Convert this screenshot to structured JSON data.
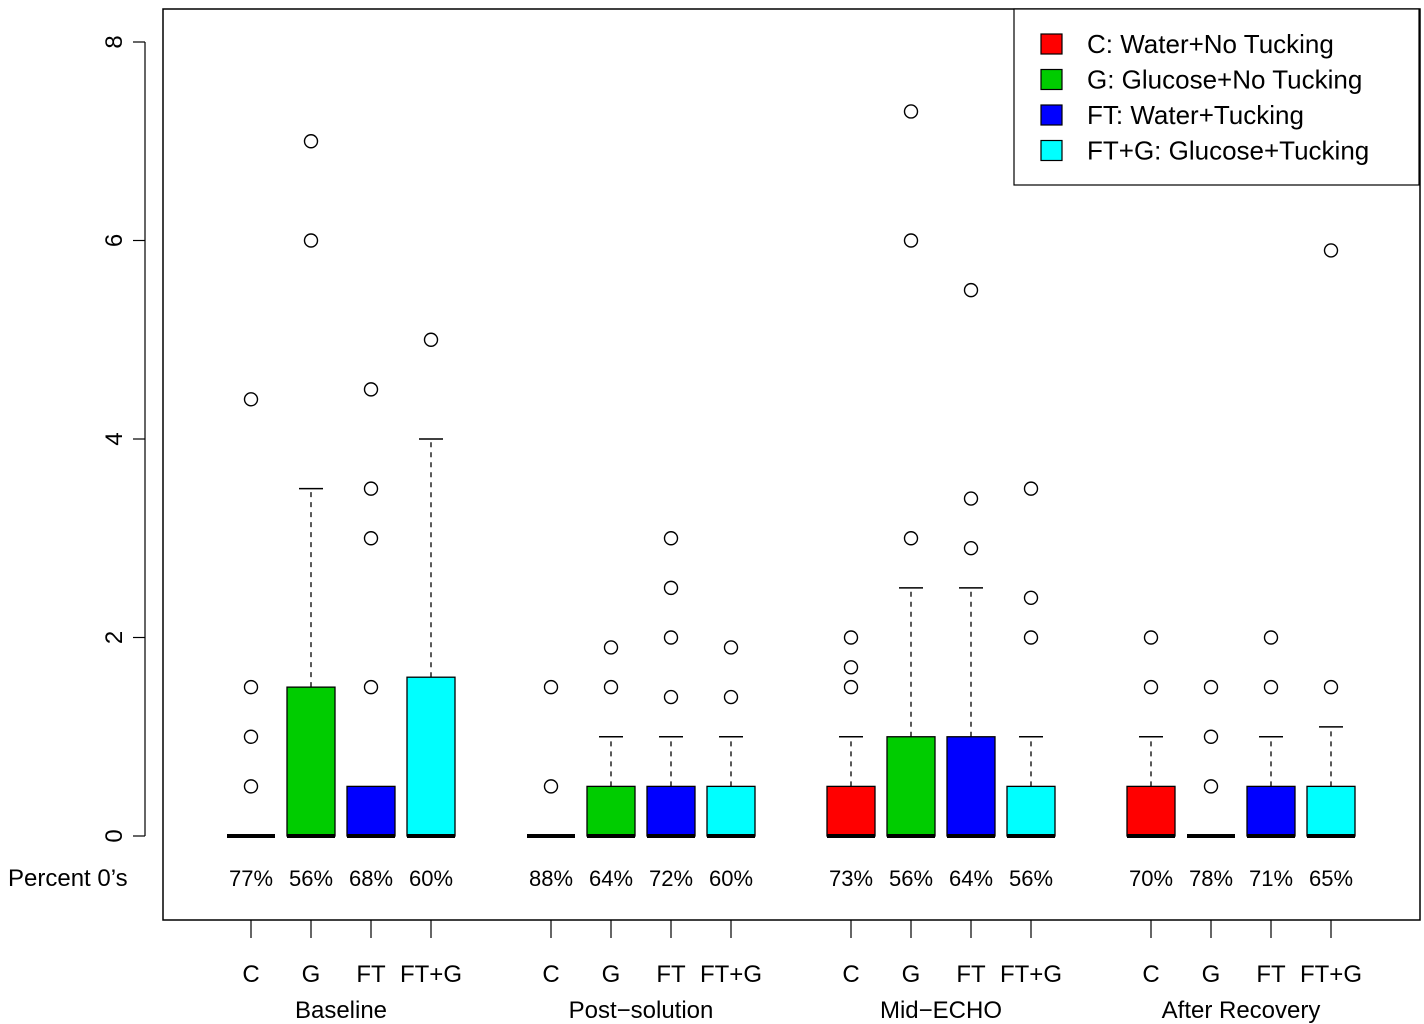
{
  "colors": {
    "C": "#ff0000",
    "G": "#00cc00",
    "FT": "#0000ff",
    "FT+G": "#00ffff"
  },
  "chart_data": {
    "type": "box",
    "title": "",
    "xlabel": "",
    "ylabel": "",
    "ylim": [
      0,
      8
    ],
    "yticks": [
      0,
      2,
      4,
      6,
      8
    ],
    "zero_row_label": "Percent 0’s",
    "groups": [
      "Baseline",
      "Post−solution",
      "Mid−ECHO",
      "After Recovery"
    ],
    "treatments": [
      "C",
      "G",
      "FT",
      "FT+G"
    ],
    "legend": {
      "position": "top-right",
      "entries": [
        {
          "key": "C",
          "label": "C: Water+No Tucking"
        },
        {
          "key": "G",
          "label": "G: Glucose+No Tucking"
        },
        {
          "key": "FT",
          "label": "FT: Water+Tucking"
        },
        {
          "key": "FT+G",
          "label": "FT+G: Glucose+Tucking"
        }
      ]
    },
    "boxes": [
      {
        "group": "Baseline",
        "treatment": "C",
        "q1": 0,
        "median": 0,
        "q3": 0,
        "whisker_high": 0,
        "outliers": [
          0.5,
          1,
          1.5,
          4.4
        ],
        "percent_zeros": "77%"
      },
      {
        "group": "Baseline",
        "treatment": "G",
        "q1": 0,
        "median": 0,
        "q3": 1.5,
        "whisker_high": 3.5,
        "outliers": [
          6,
          7
        ],
        "percent_zeros": "56%"
      },
      {
        "group": "Baseline",
        "treatment": "FT",
        "q1": 0,
        "median": 0,
        "q3": 0.5,
        "whisker_high": 0.5,
        "outliers": [
          1.5,
          3,
          3.5,
          4.5
        ],
        "percent_zeros": "68%"
      },
      {
        "group": "Baseline",
        "treatment": "FT+G",
        "q1": 0,
        "median": 0,
        "q3": 1.6,
        "whisker_high": 4,
        "outliers": [
          5
        ],
        "percent_zeros": "60%"
      },
      {
        "group": "Post−solution",
        "treatment": "C",
        "q1": 0,
        "median": 0,
        "q3": 0,
        "whisker_high": 0,
        "outliers": [
          0.5,
          1.5
        ],
        "percent_zeros": "88%"
      },
      {
        "group": "Post−solution",
        "treatment": "G",
        "q1": 0,
        "median": 0,
        "q3": 0.5,
        "whisker_high": 1,
        "outliers": [
          1.5,
          1.9
        ],
        "percent_zeros": "64%"
      },
      {
        "group": "Post−solution",
        "treatment": "FT",
        "q1": 0,
        "median": 0,
        "q3": 0.5,
        "whisker_high": 1,
        "outliers": [
          1.4,
          2,
          2.5,
          3
        ],
        "percent_zeros": "72%"
      },
      {
        "group": "Post−solution",
        "treatment": "FT+G",
        "q1": 0,
        "median": 0,
        "q3": 0.5,
        "whisker_high": 1,
        "outliers": [
          1.4,
          1.9
        ],
        "percent_zeros": "60%"
      },
      {
        "group": "Mid−ECHO",
        "treatment": "C",
        "q1": 0,
        "median": 0,
        "q3": 0.5,
        "whisker_high": 1,
        "outliers": [
          1.5,
          1.7,
          2
        ],
        "percent_zeros": "73%"
      },
      {
        "group": "Mid−ECHO",
        "treatment": "G",
        "q1": 0,
        "median": 0,
        "q3": 1,
        "whisker_high": 2.5,
        "outliers": [
          3,
          6,
          7.3
        ],
        "percent_zeros": "56%"
      },
      {
        "group": "Mid−ECHO",
        "treatment": "FT",
        "q1": 0,
        "median": 0,
        "q3": 1,
        "whisker_high": 2.5,
        "outliers": [
          2.9,
          3.4,
          5.5
        ],
        "percent_zeros": "64%"
      },
      {
        "group": "Mid−ECHO",
        "treatment": "FT+G",
        "q1": 0,
        "median": 0,
        "q3": 0.5,
        "whisker_high": 1,
        "outliers": [
          2,
          2.4,
          3.5
        ],
        "percent_zeros": "56%"
      },
      {
        "group": "After Recovery",
        "treatment": "C",
        "q1": 0,
        "median": 0,
        "q3": 0.5,
        "whisker_high": 1,
        "outliers": [
          1.5,
          2
        ],
        "percent_zeros": "70%"
      },
      {
        "group": "After Recovery",
        "treatment": "G",
        "q1": 0,
        "median": 0,
        "q3": 0,
        "whisker_high": 0,
        "outliers": [
          0.5,
          1,
          1.5
        ],
        "percent_zeros": "78%"
      },
      {
        "group": "After Recovery",
        "treatment": "FT",
        "q1": 0,
        "median": 0,
        "q3": 0.5,
        "whisker_high": 1,
        "outliers": [
          1.5,
          2
        ],
        "percent_zeros": "71%"
      },
      {
        "group": "After Recovery",
        "treatment": "FT+G",
        "q1": 0,
        "median": 0,
        "q3": 0.5,
        "whisker_high": 1.1,
        "outliers": [
          1.5,
          5.9
        ],
        "percent_zeros": "65%"
      }
    ]
  }
}
